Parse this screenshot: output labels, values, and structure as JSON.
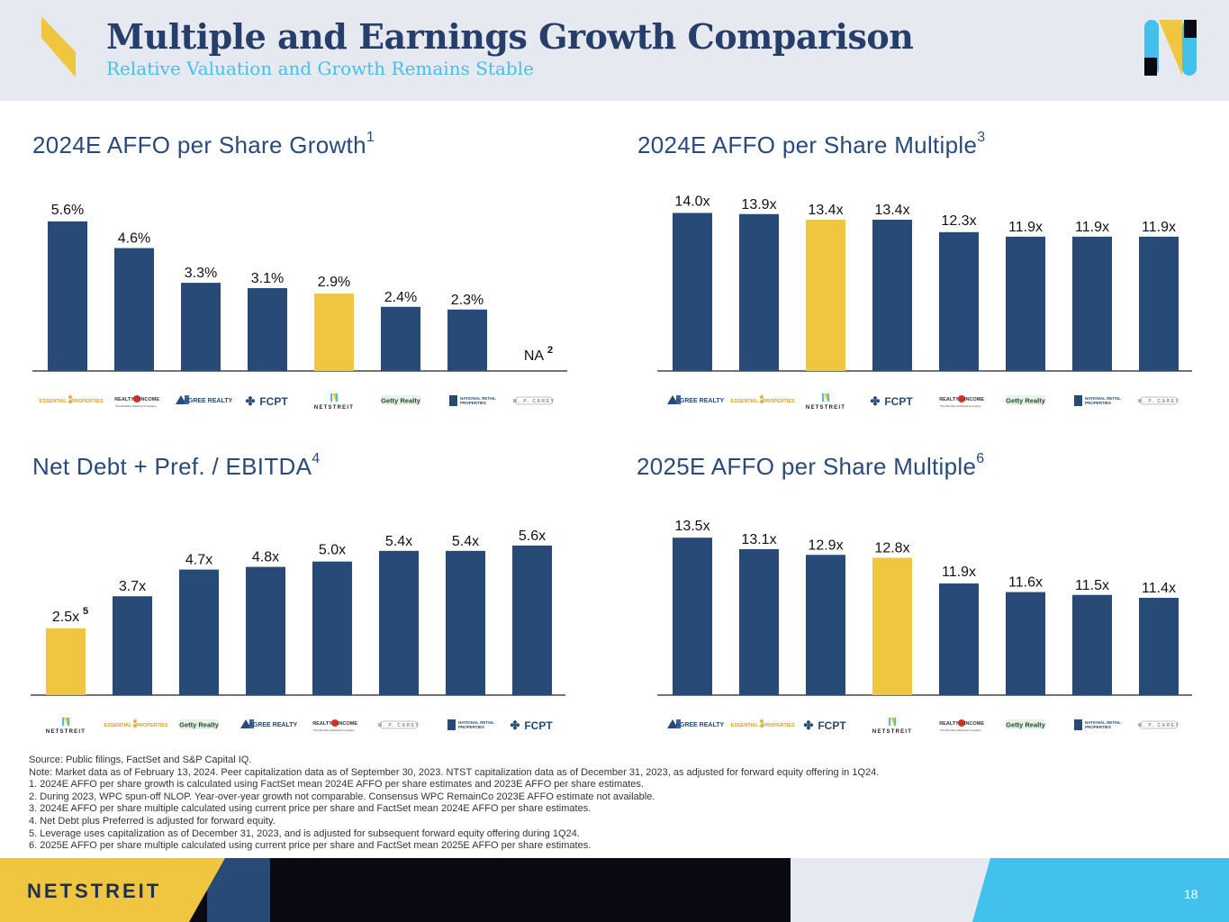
{
  "header": {
    "title": "Multiple and Earnings Growth Comparison",
    "subtitle": "Relative Valuation and Growth Remains Stable"
  },
  "colors": {
    "navy": "#284a77",
    "yellow": "#f0c640",
    "cyan": "#42c1ec",
    "title": "#263f6a"
  },
  "chart_data": [
    {
      "id": "affo-growth",
      "type": "bar",
      "title": "2024E AFFO per Share Growth",
      "title_sup": "1",
      "categories": [
        "ESSENTIAL PROPERTIES",
        "REALTY INCOME",
        "AGREE REALTY",
        "FCPT",
        "NETSTREIT",
        "Getty Realty",
        "NATIONAL RETAIL PROPERTIES",
        "W. P. CAREY"
      ],
      "values": [
        5.6,
        4.6,
        3.3,
        3.1,
        2.9,
        2.4,
        2.3,
        null
      ],
      "labels": [
        "5.6%",
        "4.6%",
        "3.3%",
        "3.1%",
        "2.9%",
        "2.4%",
        "2.3%",
        "NA"
      ],
      "label_sups": [
        "",
        "",
        "",
        "",
        "",
        "",
        "",
        "2"
      ],
      "highlight": "NETSTREIT",
      "ylim": [
        0,
        6
      ]
    },
    {
      "id": "affo-multiple-2024",
      "type": "bar",
      "title": "2024E AFFO per Share Multiple",
      "title_sup": "3",
      "categories": [
        "AGREE REALTY",
        "ESSENTIAL PROPERTIES",
        "NETSTREIT",
        "FCPT",
        "REALTY INCOME",
        "Getty Realty",
        "NATIONAL RETAIL PROPERTIES",
        "W. P. CAREY"
      ],
      "values": [
        14.0,
        13.9,
        13.4,
        13.4,
        12.3,
        11.9,
        11.9,
        11.9
      ],
      "labels": [
        "14.0x",
        "13.9x",
        "13.4x",
        "13.4x",
        "12.3x",
        "11.9x",
        "11.9x",
        "11.9x"
      ],
      "label_sups": [
        "",
        "",
        "",
        "",
        "",
        "",
        "",
        ""
      ],
      "highlight": "NETSTREIT",
      "ylim": [
        0,
        14.2
      ]
    },
    {
      "id": "net-debt-ebitda",
      "type": "bar",
      "title": "Net Debt + Pref. / EBITDA",
      "title_sup": "4",
      "categories": [
        "NETSTREIT",
        "ESSENTIAL PROPERTIES",
        "Getty Realty",
        "AGREE REALTY",
        "REALTY INCOME",
        "W. P. CAREY",
        "NATIONAL RETAIL PROPERTIES",
        "FCPT"
      ],
      "values": [
        2.5,
        3.7,
        4.7,
        4.8,
        5.0,
        5.4,
        5.4,
        5.6
      ],
      "labels": [
        "2.5x",
        "3.7x",
        "4.7x",
        "4.8x",
        "5.0x",
        "5.4x",
        "5.4x",
        "5.6x"
      ],
      "label_sups": [
        "5",
        "",
        "",
        "",
        "",
        "",
        "",
        ""
      ],
      "highlight": "NETSTREIT",
      "ylim": [
        0,
        6
      ]
    },
    {
      "id": "affo-multiple-2025",
      "type": "bar",
      "title": "2025E AFFO per Share Multiple",
      "title_sup": "6",
      "categories": [
        "AGREE REALTY",
        "ESSENTIAL PROPERTIES",
        "FCPT",
        "NETSTREIT",
        "REALTY INCOME",
        "Getty Realty",
        "NATIONAL RETAIL PROPERTIES",
        "W. P. CAREY"
      ],
      "values": [
        13.5,
        13.1,
        12.9,
        12.8,
        11.9,
        11.6,
        11.5,
        11.4
      ],
      "labels": [
        "13.5x",
        "13.1x",
        "12.9x",
        "12.8x",
        "11.9x",
        "11.6x",
        "11.5x",
        "11.4x"
      ],
      "label_sups": [
        "",
        "",
        "",
        "",
        "",
        "",
        "",
        ""
      ],
      "highlight": "NETSTREIT",
      "ylim": [
        8,
        13.6
      ]
    }
  ],
  "logos": {
    "ESSENTIAL PROPERTIES": {
      "line1": "ESSENTIAL",
      "line2": "PROPERTIES",
      "icon": "asterisk-icon"
    },
    "REALTY INCOME": {
      "line1": "REALTY",
      "line2": "INCOME",
      "tagline": "The Monthly Dividend Company",
      "icon": "circle-icon"
    },
    "AGREE REALTY": {
      "line1": "AGREE REALTY",
      "icon": "ar-icon"
    },
    "FCPT": {
      "line1": "FCPT",
      "icon": "asterisk-icon"
    },
    "NETSTREIT": {
      "line1": "NETSTREIT",
      "icon": "n-icon"
    },
    "Getty Realty": {
      "line1": "Getty Realty",
      "icon": "none"
    },
    "NATIONAL RETAIL PROPERTIES": {
      "line1": "NATIONAL RETAIL",
      "line2": "PROPERTIES",
      "icon": "nr-icon"
    },
    "W. P. CAREY": {
      "line1": "W. P. CAREY",
      "icon": "none"
    }
  },
  "footnotes": [
    "Source: Public filings, FactSet and S&P Capital IQ.",
    "Note: Market data as of February 13, 2024. Peer capitalization data as of September 30, 2023. NTST capitalization data as of December 31, 2023, as adjusted for forward equity offering in 1Q24.",
    "1.  2024E AFFO per share growth is calculated using FactSet mean 2024E AFFO per share estimates and 2023E AFFO per share estimates.",
    "2.  During 2023, WPC spun-off NLOP. Year-over-year growth not comparable. Consensus WPC RemainCo 2023E AFFO estimate not available.",
    "3.  2024E AFFO per share multiple calculated using current price per share and FactSet mean 2024E AFFO per share estimates.",
    "4.  Net Debt plus Preferred is adjusted for forward equity.",
    "5.  Leverage uses capitalization as of December 31, 2023, and is adjusted for subsequent forward equity offering during 1Q24.",
    "6.  2025E AFFO per share multiple calculated using current price per share and FactSet mean 2025E AFFO per share estimates."
  ],
  "footer": {
    "brand": "NETSTREIT",
    "page_number": "18"
  }
}
